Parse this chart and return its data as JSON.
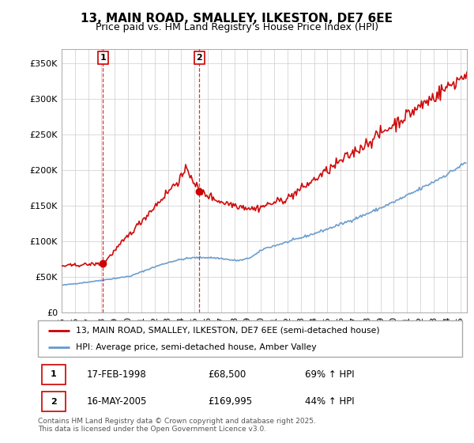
{
  "title": "13, MAIN ROAD, SMALLEY, ILKESTON, DE7 6EE",
  "subtitle": "Price paid vs. HM Land Registry's House Price Index (HPI)",
  "legend_line1": "13, MAIN ROAD, SMALLEY, ILKESTON, DE7 6EE (semi-detached house)",
  "legend_line2": "HPI: Average price, semi-detached house, Amber Valley",
  "footer": "Contains HM Land Registry data © Crown copyright and database right 2025.\nThis data is licensed under the Open Government Licence v3.0.",
  "sale1_date": "17-FEB-1998",
  "sale1_price": "£68,500",
  "sale1_hpi": "69% ↑ HPI",
  "sale2_date": "16-MAY-2005",
  "sale2_price": "£169,995",
  "sale2_hpi": "44% ↑ HPI",
  "red_color": "#cc0000",
  "blue_color": "#6699cc",
  "grid_color": "#cccccc",
  "background_color": "#ffffff",
  "ylim": [
    0,
    370000
  ],
  "yticks": [
    0,
    50000,
    100000,
    150000,
    200000,
    250000,
    300000,
    350000
  ],
  "sale1_x": 1998.12,
  "sale1_y": 68500,
  "sale2_x": 2005.37,
  "sale2_y": 169995,
  "xmin": 1995,
  "xmax": 2025.5
}
